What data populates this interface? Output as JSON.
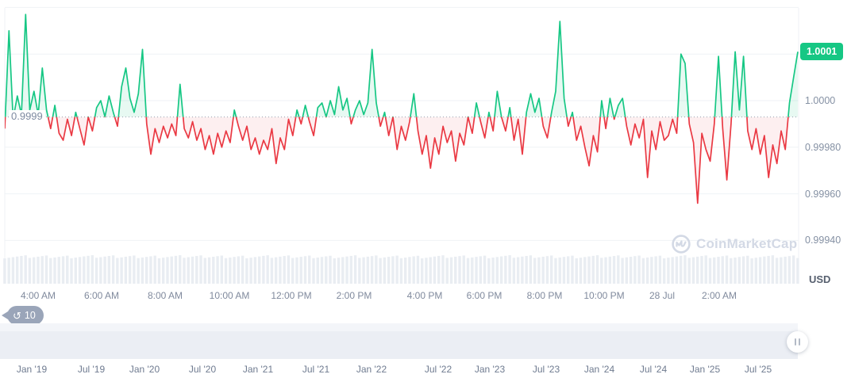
{
  "chart": {
    "unit": "USD",
    "baseline_label": "0.9999",
    "current_price_badge": "1.0001",
    "watermark_text": "CoinMarketCap"
  },
  "history_badge": {
    "count": "10"
  },
  "navigator": {
    "year_ticks": [
      "Jan '19",
      "Jul '19",
      "Jan '20",
      "Jul '20",
      "Jan '21",
      "Jul '21",
      "Jan '22",
      "Jul '22",
      "Jan '23",
      "Jul '23",
      "Jan '24",
      "Jul '24",
      "Jan '25",
      "Jul '25"
    ]
  },
  "chart_data": {
    "type": "line",
    "y_tick_labels": [
      "1.0000",
      "0.99980",
      "0.99960",
      "0.99940"
    ],
    "y_tick_values": [
      1.0,
      0.9998,
      0.9996,
      0.9994
    ],
    "x_tick_labels": [
      "4:00 AM",
      "6:00 AM",
      "8:00 AM",
      "10:00 AM",
      "12:00 PM",
      "2:00 PM",
      "4:00 PM",
      "6:00 PM",
      "8:00 PM",
      "10:00 PM",
      "28 Jul",
      "2:00 AM"
    ],
    "ylim": [
      0.99935,
      1.00042
    ],
    "baseline_value": 0.99993,
    "last_price_label": "1.0001",
    "grid": "horizontal",
    "legend": "none",
    "colors": {
      "up": "#16c784",
      "down": "#ea3943",
      "up_fill": "rgba(22,199,132,0.10)",
      "down_fill": "rgba(234,57,67,0.08)",
      "grid": "#eff2f6",
      "baseline_dots": "#98a1b3",
      "volume_bar": "#e9edf2",
      "badge": "#16c784"
    },
    "volume_bars": {
      "appearance": "near-uniform band at bottom of chart"
    },
    "series": [
      {
        "name": "Price (USD)",
        "values": [
          0.99988,
          1.0003,
          0.99992,
          1.00002,
          0.99994,
          1.00037,
          0.99996,
          1.00004,
          0.99994,
          1.00014,
          0.99996,
          0.99988,
          0.99998,
          0.99986,
          0.99983,
          0.99992,
          0.99985,
          0.99995,
          0.99988,
          0.99981,
          0.99993,
          0.99987,
          0.99997,
          1.0,
          0.99993,
          1.00002,
          0.99995,
          0.99989,
          1.00006,
          1.00014,
          1.00001,
          0.99995,
          1.00003,
          1.00022,
          0.9999,
          0.99977,
          0.99988,
          0.99982,
          0.99989,
          0.99984,
          0.9999,
          0.99985,
          1.00007,
          0.99988,
          0.99984,
          0.99991,
          0.99983,
          0.99988,
          0.99979,
          0.99985,
          0.99977,
          0.99986,
          0.9998,
          0.99987,
          0.99982,
          0.99996,
          0.99989,
          0.99983,
          0.99989,
          0.99979,
          0.99984,
          0.99977,
          0.99983,
          0.99979,
          0.99988,
          0.99973,
          0.99984,
          0.99979,
          0.99992,
          0.99985,
          0.99996,
          0.9999,
          0.99998,
          0.99991,
          0.99985,
          0.99997,
          0.99999,
          0.99993,
          1.0,
          0.99994,
          1.00006,
          0.99996,
          1.00001,
          0.9999,
          0.99996,
          1.0,
          0.99994,
          0.99999,
          1.00022,
          0.99999,
          0.99989,
          0.99995,
          0.99985,
          0.99993,
          0.99979,
          0.99989,
          0.99983,
          0.99991,
          1.00003,
          0.99987,
          0.99977,
          0.99985,
          0.99971,
          0.99984,
          0.99977,
          0.99989,
          0.99982,
          0.99987,
          0.99974,
          0.99986,
          0.99981,
          0.99993,
          0.99986,
          0.99999,
          0.99991,
          0.99984,
          0.99995,
          0.99987,
          1.00004,
          0.99993,
          0.99987,
          0.99997,
          0.99983,
          0.99992,
          0.99977,
          0.99995,
          1.00003,
          0.99995,
          1.00001,
          0.99989,
          0.99984,
          0.99995,
          1.00004,
          1.00034,
          1.00001,
          0.99989,
          0.99995,
          0.99983,
          0.99989,
          0.9998,
          0.99972,
          0.99985,
          0.99978,
          1.0,
          0.99988,
          1.00001,
          0.99992,
          0.99998,
          1.00001,
          0.99989,
          0.99981,
          0.9999,
          0.99984,
          0.99992,
          0.99967,
          0.99987,
          0.99979,
          0.99991,
          0.99983,
          0.99985,
          0.99992,
          0.99986,
          1.0002,
          1.00016,
          0.9999,
          0.99982,
          0.99956,
          0.99986,
          0.99979,
          0.99974,
          0.9999,
          1.00019,
          0.99988,
          0.99966,
          0.9999,
          1.00021,
          0.99996,
          1.00019,
          0.99987,
          0.99979,
          0.99988,
          0.99977,
          0.99985,
          0.99967,
          0.99981,
          0.99973,
          0.99987,
          0.99979,
          0.99999,
          1.0001,
          1.00021
        ]
      }
    ]
  }
}
